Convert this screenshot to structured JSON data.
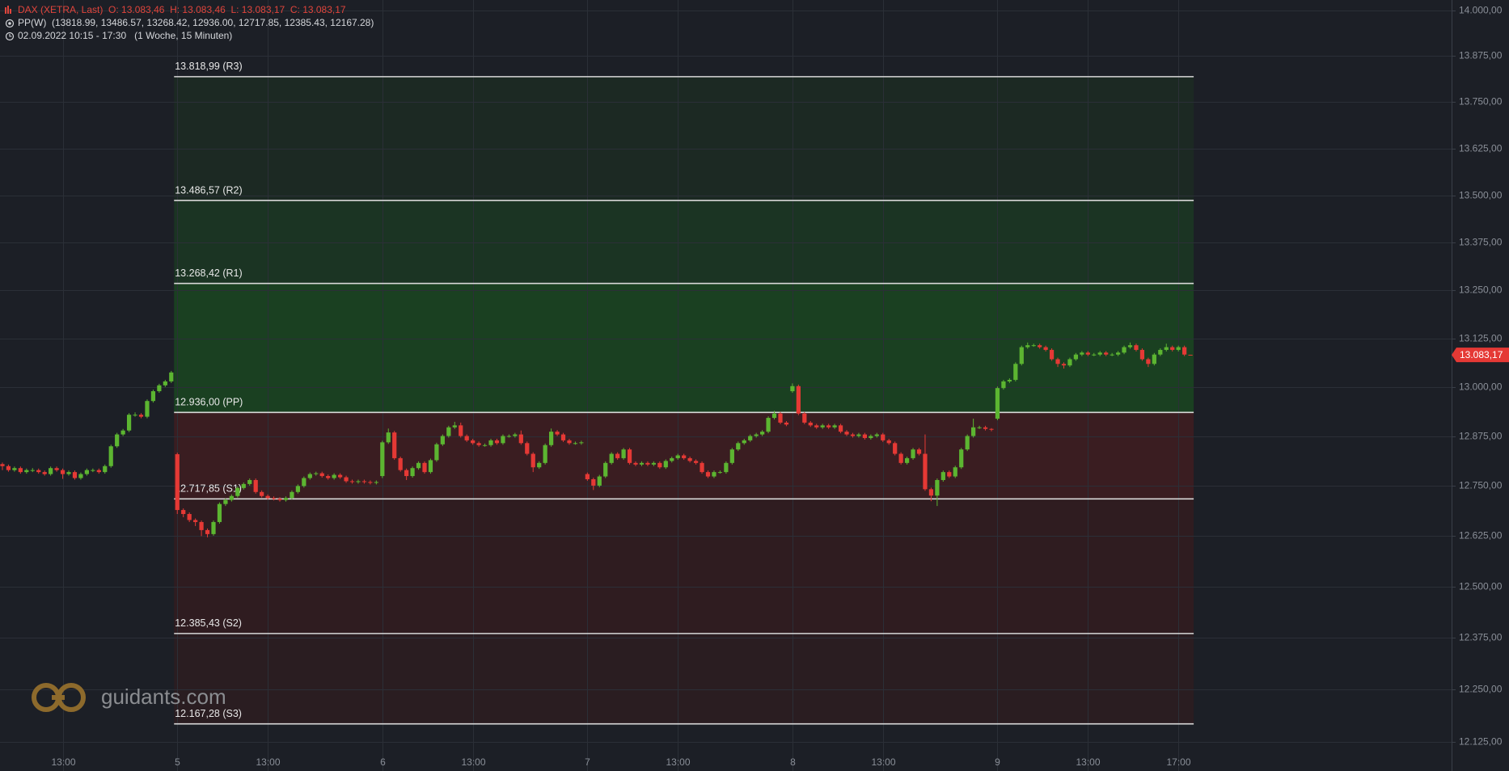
{
  "header": {
    "instrument": "DAX (XETRA, Last)  O: 13.083,46  H: 13.083,46  L: 13.083,17  C: 13.083,17",
    "indicator": "PP(W)  (13818.99, 13486.57, 13268.42, 12936.00, 12717.85, 12385.43, 12167.28)",
    "period": "02.09.2022 10:15 - 17:30   (1 Woche, 15 Minuten)"
  },
  "watermark": "guidants.com",
  "chart_data": {
    "type": "candlestick",
    "log_scale": true,
    "grid": true,
    "up_color": "#5cb531",
    "down_color": "#e53935",
    "ylim": [
      12055,
      14029
    ],
    "yticks": [
      {
        "value": 12125,
        "label": "12.125,00"
      },
      {
        "value": 12250,
        "label": "12.250,00"
      },
      {
        "value": 12375,
        "label": "12.375,00"
      },
      {
        "value": 12500,
        "label": "12.500,00"
      },
      {
        "value": 12625,
        "label": "12.625,00"
      },
      {
        "value": 12750,
        "label": "12.750,00"
      },
      {
        "value": 12875,
        "label": "12.875,00"
      },
      {
        "value": 13000,
        "label": "13.000,00"
      },
      {
        "value": 13125,
        "label": "13.125,00"
      },
      {
        "value": 13250,
        "label": "13.250,00"
      },
      {
        "value": 13375,
        "label": "13.375,00"
      },
      {
        "value": 13500,
        "label": "13.500,00"
      },
      {
        "value": 13625,
        "label": "13.625,00"
      },
      {
        "value": 13750,
        "label": "13.750,00"
      },
      {
        "value": 13875,
        "label": "13.875,00"
      },
      {
        "value": 14000,
        "label": "14.000,00"
      }
    ],
    "xlim": [
      -0.4,
      240.3
    ],
    "xticks": [
      {
        "value": 10,
        "label": "13:00"
      },
      {
        "value": 29,
        "label": "5"
      },
      {
        "value": 44,
        "label": "13:00"
      },
      {
        "value": 63,
        "label": "6"
      },
      {
        "value": 78,
        "label": "13:00"
      },
      {
        "value": 97,
        "label": "7"
      },
      {
        "value": 112,
        "label": "13:00"
      },
      {
        "value": 131,
        "label": "8"
      },
      {
        "value": 146,
        "label": "13:00"
      },
      {
        "value": 165,
        "label": "9"
      },
      {
        "value": 180,
        "label": "13:00"
      },
      {
        "value": 195,
        "label": "17:00"
      }
    ],
    "pivots": [
      {
        "value": 13818.99,
        "label": "13.818,99 (R3)"
      },
      {
        "value": 13486.57,
        "label": "13.486,57 (R2)"
      },
      {
        "value": 13268.42,
        "label": "13.268,42 (R1)"
      },
      {
        "value": 12936.0,
        "label": "12.936,00 (PP)"
      },
      {
        "value": 12717.85,
        "label": "12.717,85 (S1)"
      },
      {
        "value": 12385.43,
        "label": "12.385,43 (S2)"
      },
      {
        "value": 12167.28,
        "label": "12.167,28 (S3)"
      }
    ],
    "zone_colors": [
      "#1c2923",
      "#1b3423",
      "#1a4021",
      "#3a1d21",
      "#2f1c20",
      "#2a1d21"
    ],
    "last_price": {
      "value": 13083.17,
      "label": "13.083,17"
    },
    "open": [
      12805,
      12800,
      12790,
      12795,
      12785,
      12790,
      12790,
      12785,
      12780,
      12795,
      12790,
      12780,
      12785,
      12770,
      12780,
      12790,
      12790,
      12785,
      12800,
      12850,
      12880,
      12890,
      12930,
      12930,
      12925,
      12965,
      12990,
      13005,
      13015,
      12830,
      12690,
      12680,
      12665,
      12660,
      12640,
      12630,
      12660,
      12705,
      12715,
      12725,
      12745,
      12755,
      12765,
      12735,
      12725,
      12720,
      12718,
      12715,
      12720,
      12735,
      12750,
      12770,
      12780,
      12782,
      12775,
      12770,
      12778,
      12772,
      12762,
      12760,
      12762,
      12760,
      12758,
      12775,
      12860,
      12885,
      12820,
      12790,
      12775,
      12795,
      12808,
      12785,
      12815,
      12855,
      12876,
      12898,
      12903,
      12876,
      12865,
      12858,
      12853,
      12853,
      12865,
      12858,
      12876,
      12876,
      12880,
      12858,
      12831,
      12797,
      12808,
      12853,
      12887,
      12880,
      12865,
      12858,
      12858,
      12780,
      12767,
      12751,
      12774,
      12808,
      12831,
      12820,
      12842,
      12808,
      12804,
      12808,
      12804,
      12808,
      12797,
      12813,
      12820,
      12827,
      12820,
      12813,
      12808,
      12785,
      12774,
      12785,
      12785,
      12808,
      12842,
      12858,
      12865,
      12876,
      12880,
      12887,
      12922,
      12933,
      12910,
      12990,
      13003,
      12933,
      12910,
      12903,
      12898,
      12903,
      12898,
      12903,
      12887,
      12880,
      12876,
      12880,
      12871,
      12876,
      12880,
      12865,
      12858,
      12831,
      12808,
      12820,
      12842,
      12831,
      12742,
      12726,
      12765,
      12785,
      12774,
      12797,
      12842,
      12876,
      12898,
      12898,
      12894,
      12920,
      12998,
      13015,
      13019,
      13060,
      13103,
      13108,
      13108,
      13103,
      13096,
      13072,
      13060,
      13056,
      13072,
      13084,
      13089,
      13084,
      13084,
      13089,
      13084,
      13084,
      13089,
      13103,
      13108,
      13096,
      13072,
      13060,
      13084,
      13096,
      13103,
      13096,
      13103,
      13083.46
    ],
    "high": [
      12809,
      12804,
      12799,
      12799,
      12794,
      12795,
      12794,
      12789,
      12799,
      12799,
      12794,
      12789,
      12789,
      12784,
      12794,
      12794,
      12794,
      12804,
      12854,
      12884,
      12894,
      12934,
      12936,
      12934,
      12969,
      12994,
      13009,
      13019,
      13042,
      12834,
      12694,
      12684,
      12669,
      12664,
      12644,
      12664,
      12709,
      12719,
      12729,
      12749,
      12759,
      12769,
      12769,
      12739,
      12729,
      12724,
      12722,
      12724,
      12739,
      12754,
      12774,
      12784,
      12786,
      12786,
      12779,
      12782,
      12782,
      12776,
      12766,
      12766,
      12766,
      12764,
      12764,
      12864,
      12895,
      12889,
      12824,
      12794,
      12799,
      12812,
      12812,
      12819,
      12859,
      12880,
      12902,
      12912,
      12910,
      12880,
      12869,
      12862,
      12857,
      12869,
      12869,
      12880,
      12880,
      12884,
      12890,
      12862,
      12835,
      12812,
      12857,
      12895,
      12891,
      12884,
      12869,
      12862,
      12864,
      12784,
      12771,
      12778,
      12812,
      12835,
      12835,
      12846,
      12846,
      12812,
      12812,
      12812,
      12812,
      12812,
      12817,
      12824,
      12831,
      12831,
      12824,
      12817,
      12812,
      12789,
      12789,
      12789,
      12812,
      12846,
      12862,
      12869,
      12880,
      12884,
      12891,
      12926,
      12940,
      12937,
      12914,
      13010,
      13007,
      12937,
      12914,
      12907,
      12907,
      12907,
      12907,
      12907,
      12891,
      12884,
      12884,
      12884,
      12880,
      12884,
      12884,
      12869,
      12862,
      12835,
      12824,
      12846,
      12846,
      12880,
      12746,
      12769,
      12789,
      12789,
      12801,
      12846,
      12880,
      12920,
      12902,
      12902,
      12896,
      13002,
      13019,
      13023,
      13064,
      13107,
      13115,
      13112,
      13112,
      13107,
      13100,
      13076,
      13064,
      13076,
      13088,
      13093,
      13093,
      13088,
      13093,
      13093,
      13088,
      13093,
      13107,
      13115,
      13112,
      13100,
      13076,
      13088,
      13100,
      13112,
      13107,
      13107,
      13107,
      13083.46
    ],
    "low": [
      12790,
      12786,
      12786,
      12781,
      12781,
      12785,
      12781,
      12776,
      12776,
      12786,
      12768,
      12776,
      12766,
      12766,
      12776,
      12785,
      12781,
      12781,
      12796,
      12846,
      12876,
      12886,
      12925,
      12921,
      12921,
      12961,
      12986,
      13001,
      13011,
      12680,
      12672,
      12660,
      12650,
      12625,
      12622,
      12626,
      12656,
      12700,
      12711,
      12721,
      12741,
      12751,
      12731,
      12721,
      12716,
      12714,
      12711,
      12711,
      12716,
      12731,
      12746,
      12766,
      12776,
      12771,
      12766,
      12766,
      12768,
      12758,
      12756,
      12756,
      12756,
      12754,
      12754,
      12770,
      12856,
      12816,
      12786,
      12765,
      12771,
      12791,
      12781,
      12781,
      12811,
      12851,
      12872,
      12894,
      12872,
      12861,
      12854,
      12849,
      12849,
      12849,
      12854,
      12854,
      12872,
      12872,
      12854,
      12827,
      12785,
      12793,
      12804,
      12849,
      12876,
      12861,
      12854,
      12854,
      12854,
      12763,
      12740,
      12747,
      12770,
      12804,
      12816,
      12816,
      12804,
      12800,
      12800,
      12800,
      12800,
      12793,
      12793,
      12809,
      12816,
      12816,
      12809,
      12804,
      12781,
      12770,
      12770,
      12781,
      12781,
      12804,
      12838,
      12854,
      12861,
      12872,
      12876,
      12883,
      12918,
      12906,
      12901,
      12986,
      12929,
      12906,
      12899,
      12894,
      12894,
      12894,
      12894,
      12883,
      12876,
      12872,
      12872,
      12867,
      12867,
      12872,
      12861,
      12854,
      12827,
      12804,
      12804,
      12816,
      12827,
      12738,
      12712,
      12700,
      12761,
      12770,
      12770,
      12793,
      12838,
      12872,
      12894,
      12890,
      12888,
      12916,
      12994,
      13011,
      13015,
      13056,
      13099,
      13104,
      13099,
      13092,
      13068,
      13052,
      13048,
      13052,
      13068,
      13080,
      13080,
      13080,
      13080,
      13080,
      13080,
      13080,
      13085,
      13099,
      13092,
      13068,
      13052,
      13056,
      13080,
      13092,
      13092,
      13092,
      13080,
      13083.17
    ],
    "close": [
      12800,
      12790,
      12795,
      12785,
      12790,
      12790,
      12785,
      12780,
      12795,
      12790,
      12780,
      12785,
      12770,
      12780,
      12790,
      12790,
      12785,
      12800,
      12850,
      12880,
      12890,
      12930,
      12930,
      12925,
      12965,
      12990,
      13005,
      13015,
      13038,
      12690,
      12680,
      12665,
      12660,
      12640,
      12630,
      12660,
      12705,
      12715,
      12725,
      12745,
      12755,
      12765,
      12735,
      12725,
      12720,
      12718,
      12715,
      12720,
      12735,
      12750,
      12770,
      12780,
      12782,
      12775,
      12770,
      12778,
      12772,
      12762,
      12760,
      12762,
      12760,
      12758,
      12760,
      12860,
      12885,
      12820,
      12790,
      12775,
      12795,
      12808,
      12785,
      12815,
      12855,
      12876,
      12898,
      12903,
      12876,
      12865,
      12858,
      12853,
      12853,
      12865,
      12858,
      12876,
      12876,
      12880,
      12858,
      12831,
      12797,
      12808,
      12853,
      12887,
      12880,
      12865,
      12858,
      12858,
      12860,
      12767,
      12751,
      12774,
      12808,
      12831,
      12820,
      12842,
      12808,
      12804,
      12808,
      12804,
      12808,
      12797,
      12813,
      12820,
      12827,
      12820,
      12813,
      12808,
      12785,
      12774,
      12785,
      12785,
      12808,
      12842,
      12858,
      12865,
      12876,
      12880,
      12887,
      12922,
      12933,
      12910,
      12905,
      13003,
      12933,
      12910,
      12903,
      12898,
      12903,
      12898,
      12903,
      12887,
      12880,
      12876,
      12880,
      12871,
      12876,
      12880,
      12865,
      12858,
      12831,
      12808,
      12820,
      12842,
      12831,
      12742,
      12726,
      12765,
      12785,
      12774,
      12797,
      12842,
      12876,
      12898,
      12898,
      12894,
      12892,
      12998,
      13015,
      13019,
      13060,
      13103,
      13108,
      13108,
      13103,
      13096,
      13072,
      13060,
      13056,
      13072,
      13084,
      13089,
      13084,
      13084,
      13089,
      13084,
      13084,
      13089,
      13103,
      13108,
      13096,
      13072,
      13060,
      13084,
      13096,
      13103,
      13096,
      13103,
      13084,
      13083.17
    ]
  }
}
